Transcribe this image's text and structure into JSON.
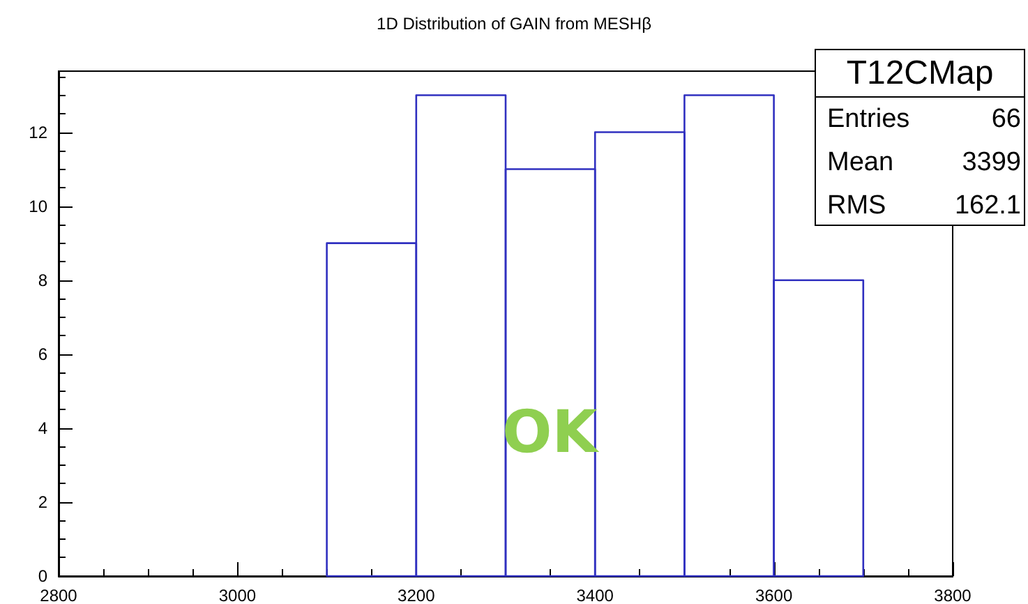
{
  "chart_data": {
    "type": "histogram",
    "title": "1D Distribution of GAIN from MESHβ",
    "bins": [
      3100,
      3200,
      3300,
      3400,
      3500,
      3600,
      3700
    ],
    "values": [
      9,
      13,
      11,
      12,
      13,
      8
    ],
    "color": "#3030c0",
    "xlim": [
      2800,
      3800
    ],
    "xticks": [
      2800,
      3000,
      3200,
      3400,
      3600,
      3800
    ],
    "ylim": [
      0,
      13.65
    ],
    "yticks": [
      0,
      2,
      4,
      6,
      8,
      10,
      12
    ],
    "annotations": [
      "T12CMap",
      "Entries",
      "66",
      "Mean",
      "3399",
      "RMS",
      "162.1",
      "OK"
    ]
  }
}
